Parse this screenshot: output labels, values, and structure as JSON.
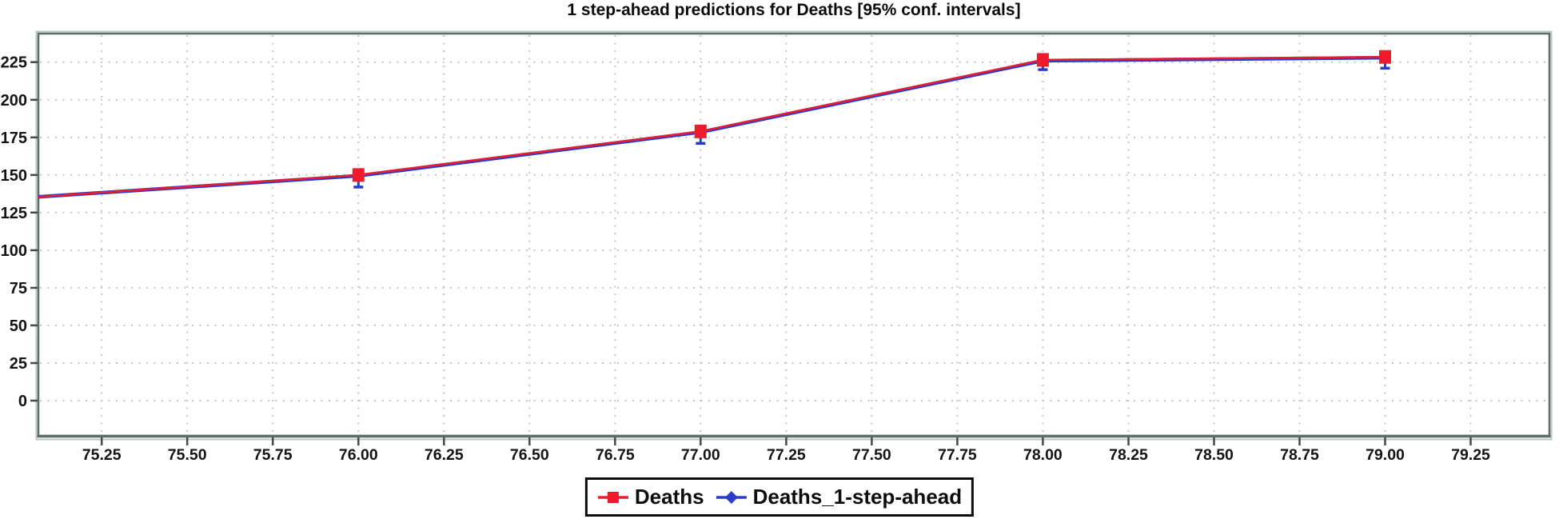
{
  "chart_data": {
    "type": "line",
    "title": "1 step-ahead predictions for Deaths [95% conf. intervals]",
    "x": [
      75.0,
      76.0,
      77.0,
      78.0,
      79.0
    ],
    "series": [
      {
        "name": "Deaths",
        "color": "#ee1b2d",
        "marker": "square",
        "values": [
          134.5,
          150,
          179,
          226.5,
          228.5
        ]
      },
      {
        "name": "Deaths_1-step-ahead",
        "color": "#2a3ccc",
        "marker": "diamond",
        "values": [
          134.5,
          149.5,
          178.5,
          226,
          228
        ],
        "ci_lower": [
          null,
          142,
          171,
          220,
          221
        ]
      }
    ],
    "xlim": [
      75.065,
      79.48
    ],
    "ylim": [
      -23.4,
      244
    ],
    "x_ticks": [
      75.25,
      75.5,
      75.75,
      76.0,
      76.25,
      76.5,
      76.75,
      77.0,
      77.25,
      77.5,
      77.75,
      78.0,
      78.25,
      78.5,
      78.75,
      79.0,
      79.25
    ],
    "x_tick_labels": [
      "75.25",
      "75.50",
      "75.75",
      "76.00",
      "76.25",
      "76.50",
      "76.75",
      "77.00",
      "77.25",
      "77.50",
      "77.75",
      "78.00",
      "78.25",
      "78.50",
      "78.75",
      "79.00",
      "79.25"
    ],
    "y_ticks": [
      0,
      25,
      50,
      75,
      100,
      125,
      150,
      175,
      200,
      225
    ],
    "grid": "dotted",
    "legend_position": "bottom-center"
  },
  "colors": {
    "grid": "#bac9c5",
    "frame": "#5c6d6a",
    "frame_shadow": "#bcc7c4",
    "tick": "#3e4c4a",
    "text": "#141414",
    "background": "#ffffff"
  }
}
